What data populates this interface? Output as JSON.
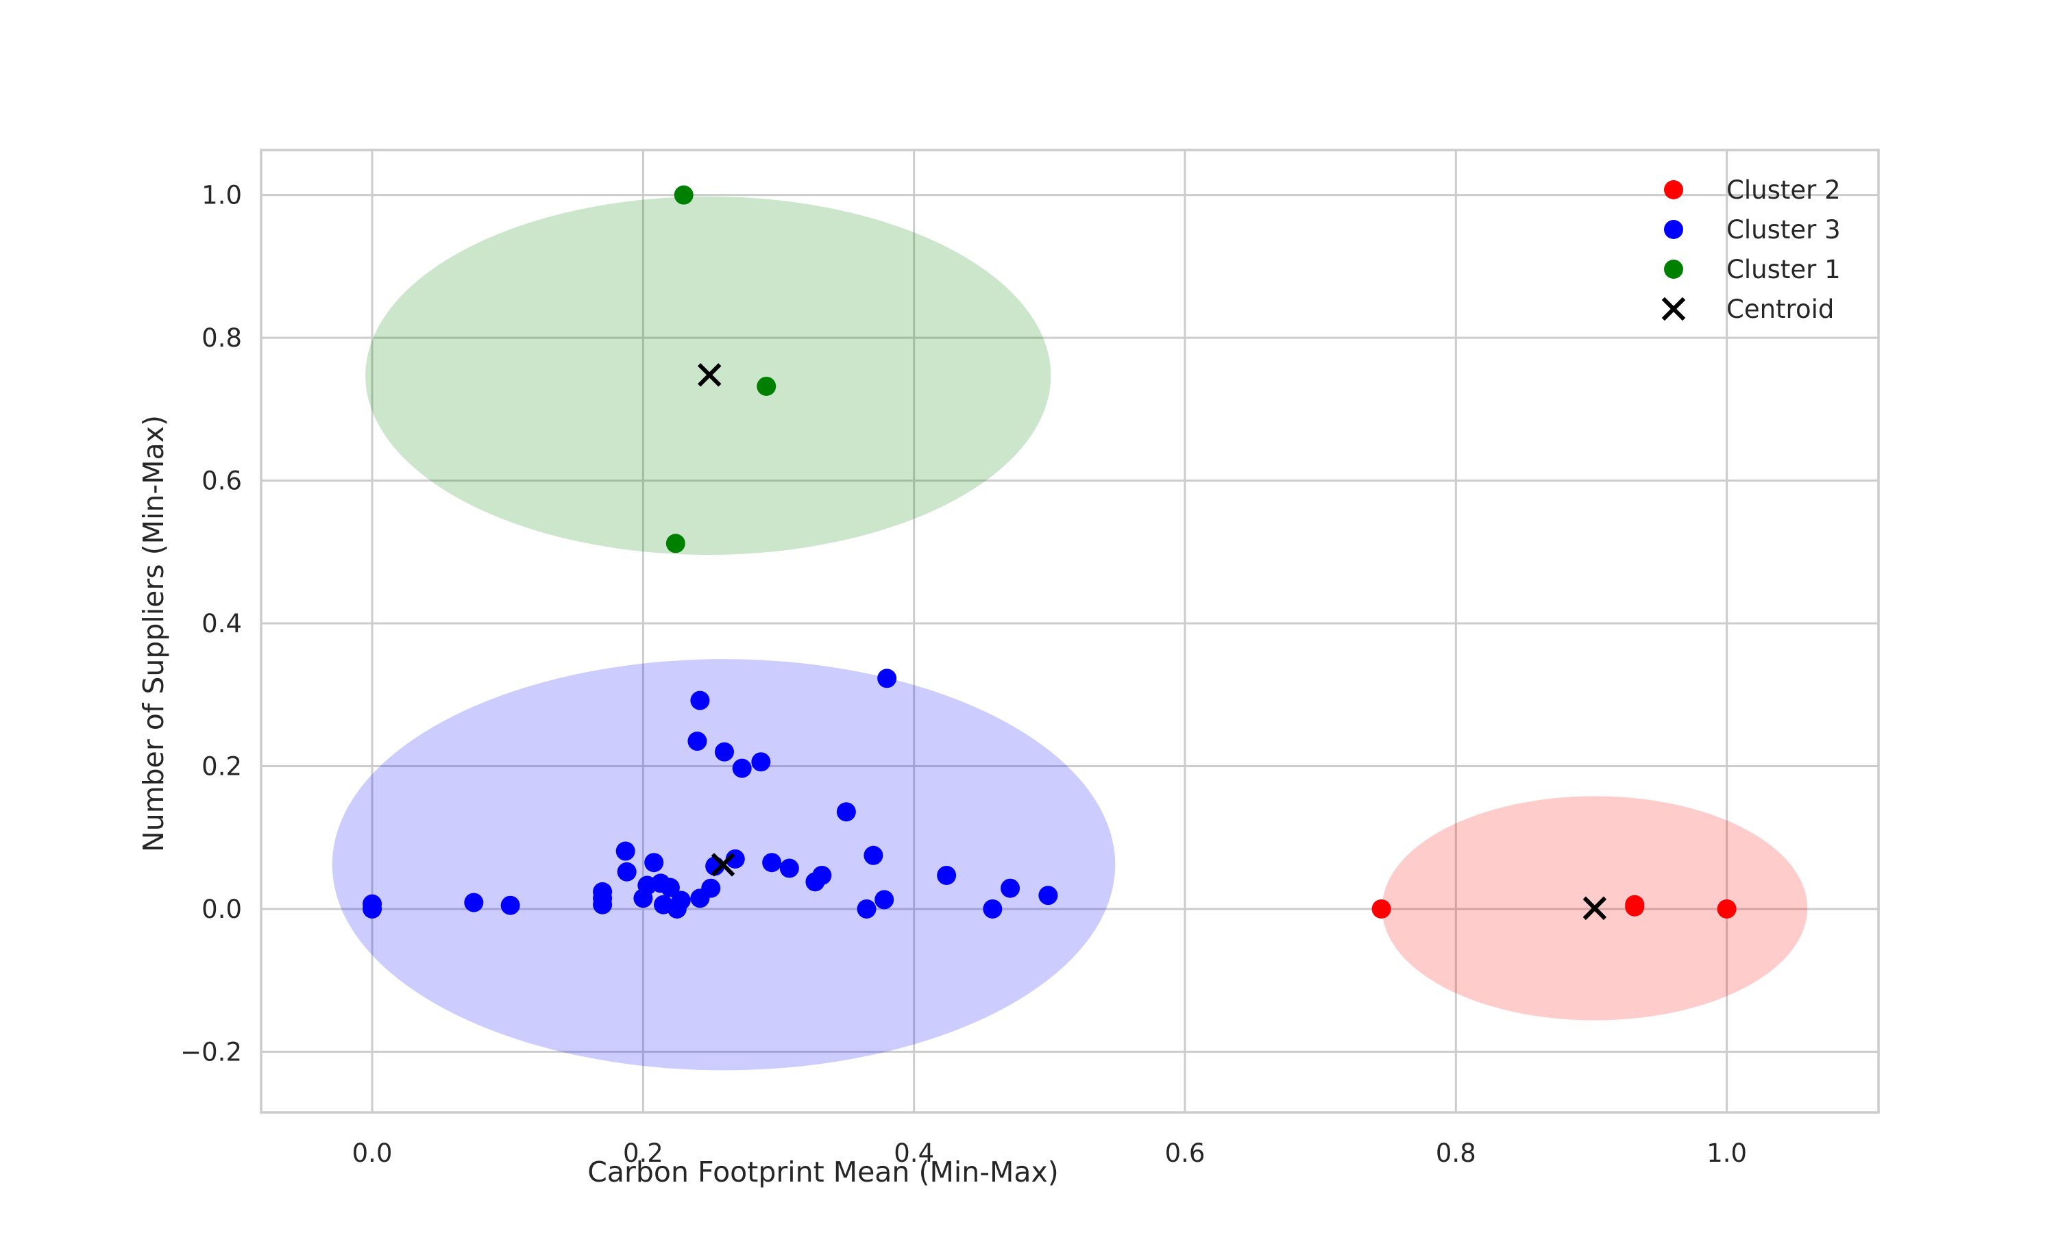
{
  "chart_data": {
    "type": "scatter",
    "title": "",
    "xlabel": "Carbon Footprint Mean (Min-Max)",
    "ylabel": "Number of Suppliers (Min-Max)",
    "xlim": [
      -0.082,
      1.112
    ],
    "ylim": [
      -0.285,
      1.063
    ],
    "xticks": [
      0.0,
      0.2,
      0.4,
      0.6,
      0.8,
      1.0
    ],
    "yticks": [
      -0.2,
      0.0,
      0.2,
      0.4,
      0.6,
      0.8,
      1.0
    ],
    "xtick_labels": [
      "0.0",
      "0.2",
      "0.4",
      "0.6",
      "0.8",
      "1.0"
    ],
    "ytick_labels": [
      "−0.2",
      "0.0",
      "0.2",
      "0.4",
      "0.6",
      "0.8",
      "1.0"
    ],
    "grid": true,
    "legend_position": "top-right",
    "series": [
      {
        "name": "Cluster 2",
        "color": "#ff0000",
        "points": [
          [
            0.745,
            0.0
          ],
          [
            0.932,
            0.003
          ],
          [
            0.932,
            0.006
          ],
          [
            1.0,
            0.0
          ]
        ],
        "ellipse": {
          "cx": 0.9025,
          "cy": 0.001,
          "rx": 0.157,
          "ry": 0.157,
          "fill": "#ff0000",
          "opacity": 0.2
        }
      },
      {
        "name": "Cluster 3",
        "color": "#0000ff",
        "points": [
          [
            0.0,
            0.0
          ],
          [
            0.0,
            0.007
          ],
          [
            0.075,
            0.009
          ],
          [
            0.102,
            0.005
          ],
          [
            0.17,
            0.006
          ],
          [
            0.17,
            0.015
          ],
          [
            0.17,
            0.024
          ],
          [
            0.187,
            0.081
          ],
          [
            0.188,
            0.052
          ],
          [
            0.2,
            0.015
          ],
          [
            0.203,
            0.033
          ],
          [
            0.208,
            0.065
          ],
          [
            0.213,
            0.036
          ],
          [
            0.215,
            0.006
          ],
          [
            0.22,
            0.03
          ],
          [
            0.225,
            0.0
          ],
          [
            0.228,
            0.012
          ],
          [
            0.24,
            0.235
          ],
          [
            0.242,
            0.292
          ],
          [
            0.242,
            0.015
          ],
          [
            0.25,
            0.029
          ],
          [
            0.253,
            0.06
          ],
          [
            0.26,
            0.22
          ],
          [
            0.268,
            0.07
          ],
          [
            0.273,
            0.197
          ],
          [
            0.287,
            0.206
          ],
          [
            0.295,
            0.065
          ],
          [
            0.308,
            0.057
          ],
          [
            0.327,
            0.038
          ],
          [
            0.332,
            0.047
          ],
          [
            0.35,
            0.136
          ],
          [
            0.365,
            0.0
          ],
          [
            0.37,
            0.075
          ],
          [
            0.378,
            0.013
          ],
          [
            0.38,
            0.323
          ],
          [
            0.424,
            0.047
          ],
          [
            0.458,
            0.0
          ],
          [
            0.471,
            0.029
          ],
          [
            0.499,
            0.019
          ]
        ],
        "ellipse": {
          "cx": 0.2595,
          "cy": 0.062,
          "rx": 0.289,
          "ry": 0.288,
          "fill": "#0000ff",
          "opacity": 0.2
        }
      },
      {
        "name": "Cluster 1",
        "color": "#008000",
        "points": [
          [
            0.23,
            1.0
          ],
          [
            0.291,
            0.732
          ],
          [
            0.224,
            0.512
          ]
        ],
        "ellipse": {
          "cx": 0.248,
          "cy": 0.747,
          "rx": 0.253,
          "ry": 0.251,
          "fill": "#008000",
          "opacity": 0.2
        }
      }
    ],
    "centroids": {
      "name": "Centroid",
      "color": "#000000",
      "points": [
        [
          0.249,
          0.748
        ],
        [
          0.259,
          0.062
        ],
        [
          0.9025,
          0.001
        ]
      ]
    }
  }
}
